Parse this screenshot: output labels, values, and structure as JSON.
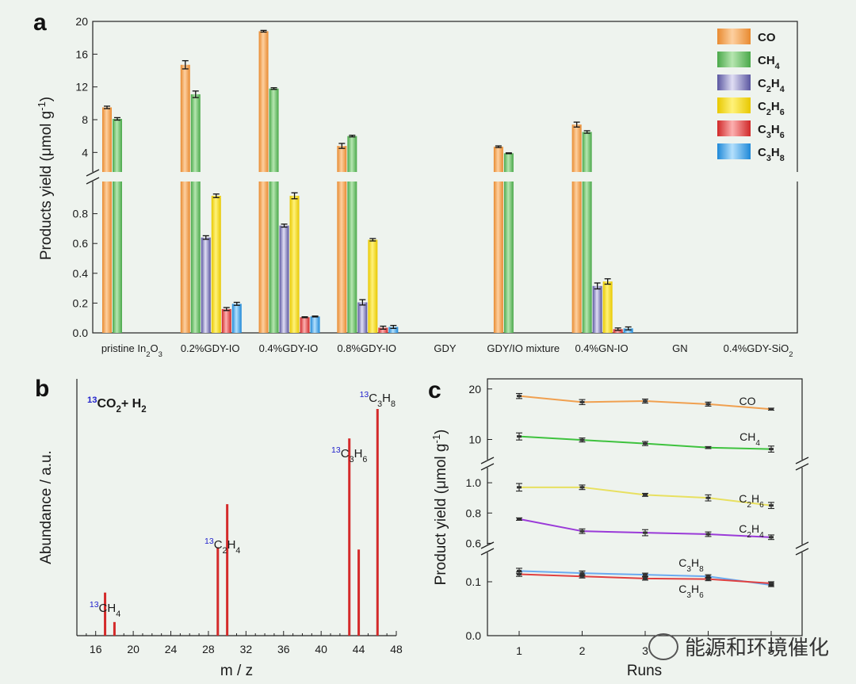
{
  "watermark": "能源和环境催化",
  "colors": {
    "CO": "#f3a050",
    "CH4": "#6cc06a",
    "C2H4": "#8a86c4",
    "C2H6": "#f2d200",
    "C3H6": "#ea3c3c",
    "C3H8": "#3aa4ea",
    "line_CO": "#f0a050",
    "line_CH4": "#3ec23e",
    "line_C2H6": "#e8e060",
    "line_C2H4": "#9a3ad8",
    "line_C3H8": "#6aaaf0",
    "line_C3H6": "#e04040",
    "ms": "#d42a2a",
    "iso": "#2222cc"
  },
  "chart_data": [
    {
      "id": "a",
      "panel": "a",
      "type": "bar",
      "ylabel_main": "Products yield (μmol g",
      "ylabel_sup": "-1",
      "ylabel_end": ")",
      "categories": [
        "pristine In2O3",
        "0.2%GDY-IO",
        "0.4%GDY-IO",
        "0.8%GDY-IO",
        "GDY",
        "GDY/IO mixture",
        "0.4%GN-IO",
        "GN",
        "0.4%GDY-SiO2"
      ],
      "category_labels": [
        [
          "pristine In",
          "2",
          "O",
          "3"
        ],
        [
          "0.2%GDY-IO"
        ],
        [
          "0.4%GDY-IO"
        ],
        [
          "0.8%GDY-IO"
        ],
        [
          "GDY"
        ],
        [
          "GDY/IO mixture"
        ],
        [
          "0.4%GN-IO"
        ],
        [
          "GN"
        ],
        [
          "0.4%GDY-SiO",
          "2"
        ]
      ],
      "yticks_lower": [
        "0.0",
        "0.2",
        "0.4",
        "0.6",
        "0.8"
      ],
      "yticks_upper": [
        "4",
        "8",
        "12",
        "16",
        "20"
      ],
      "ylim_lower": [
        0,
        1.0
      ],
      "ylim_upper": [
        2,
        20
      ],
      "series": [
        {
          "name": "CO",
          "key": "CO",
          "legend": [
            "CO"
          ],
          "values": [
            9.5,
            14.7,
            18.8,
            4.8,
            0,
            4.7,
            7.4,
            0,
            0
          ],
          "errors": [
            0.15,
            0.5,
            0.1,
            0.3,
            0,
            0.1,
            0.3,
            0,
            0
          ]
        },
        {
          "name": "CH4",
          "key": "CH4",
          "legend": [
            "CH",
            "4"
          ],
          "values": [
            8.1,
            11.1,
            11.8,
            6.0,
            0,
            3.9,
            6.5,
            0,
            0
          ],
          "errors": [
            0.15,
            0.4,
            0.1,
            0.1,
            0,
            0.05,
            0.15,
            0,
            0
          ]
        },
        {
          "name": "C2H4",
          "key": "C2H4",
          "legend": [
            "C",
            "2",
            "H",
            "4"
          ],
          "values": [
            0,
            0.64,
            0.72,
            0.205,
            0,
            0,
            0.315,
            0,
            0
          ],
          "errors": [
            0,
            0.012,
            0.01,
            0.018,
            0,
            0,
            0.02,
            0,
            0
          ]
        },
        {
          "name": "C2H6",
          "key": "C2H6",
          "legend": [
            "C",
            "2",
            "H",
            "6"
          ],
          "values": [
            0,
            0.92,
            0.92,
            0.625,
            0,
            0,
            0.345,
            0,
            0
          ],
          "errors": [
            0,
            0.012,
            0.02,
            0.008,
            0,
            0,
            0.018,
            0,
            0
          ]
        },
        {
          "name": "C3H6",
          "key": "C3H6",
          "legend": [
            "C",
            "3",
            "H",
            "6"
          ],
          "values": [
            0,
            0.16,
            0.105,
            0.035,
            0,
            0,
            0.025,
            0,
            0
          ],
          "errors": [
            0,
            0.01,
            0.003,
            0.01,
            0,
            0,
            0.008,
            0,
            0
          ]
        },
        {
          "name": "C3H8",
          "key": "C3H8",
          "legend": [
            "C",
            "3",
            "H",
            "8"
          ],
          "values": [
            0,
            0.195,
            0.11,
            0.04,
            0,
            0,
            0.03,
            0,
            0
          ],
          "errors": [
            0,
            0.01,
            0.003,
            0.01,
            0,
            0,
            0.01,
            0,
            0
          ]
        }
      ]
    },
    {
      "id": "b",
      "panel": "b",
      "type": "bar",
      "xlabel": "m / z",
      "ylabel": "Abundance / a.u.",
      "title_parts": [
        "13",
        "CO",
        "2",
        "+ H",
        "2"
      ],
      "xlim": [
        14,
        48
      ],
      "xticks": [
        16,
        20,
        24,
        28,
        32,
        36,
        40,
        44,
        48
      ],
      "peaks": [
        {
          "mz": 17,
          "h": 0.19
        },
        {
          "mz": 18,
          "h": 0.06
        },
        {
          "mz": 29,
          "h": 0.39
        },
        {
          "mz": 30,
          "h": 0.58
        },
        {
          "mz": 43,
          "h": 0.87
        },
        {
          "mz": 44,
          "h": 0.38
        },
        {
          "mz": 46,
          "h": 1.0
        }
      ],
      "annotations": [
        {
          "mz": 17,
          "parts": [
            "13",
            "CH",
            "4"
          ]
        },
        {
          "mz": 29.5,
          "parts": [
            "13",
            "C",
            "2",
            "H",
            "4"
          ]
        },
        {
          "mz": 43,
          "parts": [
            "13",
            "C",
            "3",
            "H",
            "6"
          ]
        },
        {
          "mz": 46,
          "parts": [
            "13",
            "C",
            "3",
            "H",
            "8"
          ]
        }
      ]
    },
    {
      "id": "c",
      "panel": "c",
      "type": "line",
      "xlabel": "Runs",
      "ylabel_main": "Product yield (μmol g",
      "ylabel_sup": "-1",
      "ylabel_end": ")",
      "x": [
        1,
        2,
        3,
        4,
        5
      ],
      "xticks": [
        "1",
        "2",
        "3",
        "4",
        "5"
      ],
      "yticks": {
        "top": [
          "10",
          "20"
        ],
        "mid": [
          "0.6",
          "0.8",
          "1.0"
        ],
        "low": [
          "0.0",
          "0.1"
        ]
      },
      "series": [
        {
          "name": "CO",
          "key": "line_CO",
          "band": "top",
          "label": [
            "CO"
          ],
          "values": [
            18.6,
            17.4,
            17.6,
            17.0,
            16.0
          ],
          "errors": [
            0.5,
            0.5,
            0.4,
            0.4,
            0.2
          ]
        },
        {
          "name": "CH4",
          "key": "line_CH4",
          "band": "top",
          "label": [
            "CH",
            "4"
          ],
          "values": [
            10.6,
            9.9,
            9.2,
            8.4,
            8.1
          ],
          "errors": [
            0.7,
            0.4,
            0.4,
            0.2,
            0.6
          ]
        },
        {
          "name": "C2H6",
          "key": "line_C2H6",
          "band": "mid",
          "label": [
            "C",
            "2",
            "H",
            "6"
          ],
          "values": [
            0.97,
            0.97,
            0.92,
            0.9,
            0.85
          ],
          "errors": [
            0.025,
            0.015,
            0.01,
            0.02,
            0.02
          ]
        },
        {
          "name": "C2H4",
          "key": "line_C2H4",
          "band": "mid",
          "label": [
            "C",
            "2",
            "H",
            "4"
          ],
          "values": [
            0.76,
            0.68,
            0.67,
            0.66,
            0.64
          ],
          "errors": [
            0.008,
            0.015,
            0.02,
            0.015,
            0.015
          ]
        },
        {
          "name": "C3H8",
          "key": "line_C3H8",
          "band": "low",
          "label": [
            "C",
            "3",
            "H",
            "8"
          ],
          "values": [
            0.12,
            0.116,
            0.113,
            0.11,
            0.094
          ],
          "errors": [
            0.005,
            0.004,
            0.003,
            0.003,
            0.003
          ]
        },
        {
          "name": "C3H6",
          "key": "line_C3H6",
          "band": "low",
          "label": [
            "C",
            "3",
            "H",
            "6"
          ],
          "values": [
            0.114,
            0.11,
            0.106,
            0.105,
            0.097
          ],
          "errors": [
            0.004,
            0.003,
            0.003,
            0.003,
            0.003
          ]
        }
      ]
    }
  ]
}
